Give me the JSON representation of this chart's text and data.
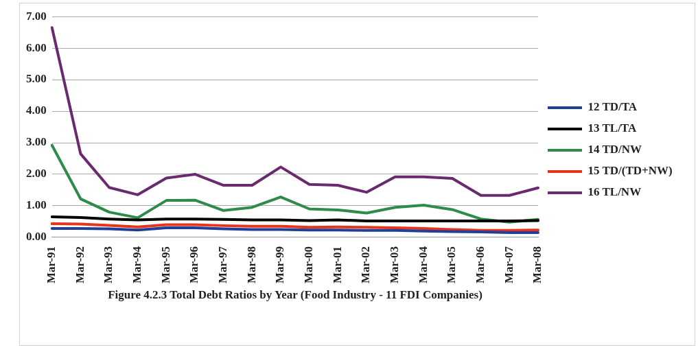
{
  "chart_data": {
    "type": "line",
    "title": "Figure 4.2.3  Total Debt Ratios by Year (Food  Industry - 11 FDI Companies)",
    "categories": [
      "Mar-91",
      "Mar-92",
      "Mar-93",
      "Mar-94",
      "Mar-95",
      "Mar-96",
      "Mar-97",
      "Mar-98",
      "Mar-99",
      "Mar-00",
      "Mar-01",
      "Mar-02",
      "Mar-03",
      "Mar-04",
      "Mar-05",
      "Mar-06",
      "Mar-07",
      "Mar-08"
    ],
    "series": [
      {
        "name": "12 TD/TA",
        "color": "#1f3f99",
        "values": [
          0.28,
          0.28,
          0.27,
          0.23,
          0.3,
          0.3,
          0.27,
          0.25,
          0.25,
          0.23,
          0.23,
          0.22,
          0.22,
          0.2,
          0.18,
          0.17,
          0.15,
          0.15
        ]
      },
      {
        "name": "13 TL/TA",
        "color": "#000000",
        "values": [
          0.65,
          0.63,
          0.58,
          0.55,
          0.58,
          0.58,
          0.57,
          0.55,
          0.55,
          0.53,
          0.55,
          0.52,
          0.52,
          0.52,
          0.52,
          0.52,
          0.52,
          0.53
        ]
      },
      {
        "name": "14 TD/NW",
        "color": "#2e8b4a",
        "values": [
          2.92,
          1.22,
          0.8,
          0.62,
          1.17,
          1.18,
          0.85,
          0.95,
          1.28,
          0.9,
          0.87,
          0.77,
          0.95,
          1.02,
          0.88,
          0.58,
          0.48,
          0.57
        ]
      },
      {
        "name": "15 TD/(TD+NW)",
        "color": "#e8341c",
        "values": [
          0.43,
          0.42,
          0.38,
          0.33,
          0.4,
          0.4,
          0.37,
          0.35,
          0.35,
          0.32,
          0.33,
          0.32,
          0.3,
          0.28,
          0.25,
          0.22,
          0.22,
          0.23
        ]
      },
      {
        "name": "16 TL/NW",
        "color": "#6a2a6e",
        "values": [
          6.65,
          2.65,
          1.58,
          1.35,
          1.88,
          2.0,
          1.65,
          1.65,
          2.23,
          1.68,
          1.65,
          1.43,
          1.92,
          1.92,
          1.87,
          1.33,
          1.33,
          1.57
        ]
      }
    ],
    "ylim": [
      0,
      7
    ],
    "yticks": [
      {
        "value": 0,
        "label": "0.00"
      },
      {
        "value": 1,
        "label": "1.00"
      },
      {
        "value": 2,
        "label": "2.00"
      },
      {
        "value": 3,
        "label": "3.00"
      },
      {
        "value": 4,
        "label": "4.00"
      },
      {
        "value": 5,
        "label": "5.00"
      },
      {
        "value": 6,
        "label": "6.00"
      },
      {
        "value": 7,
        "label": "7.00"
      }
    ],
    "grid": "y",
    "legend": "right",
    "marker": "none",
    "line_style": "solid"
  }
}
